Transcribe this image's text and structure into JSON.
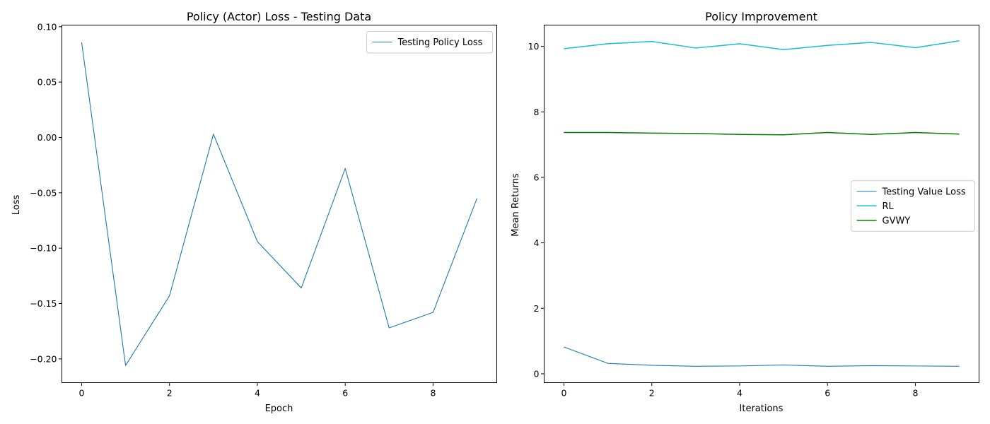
{
  "chart_data": [
    {
      "type": "line",
      "title": "Policy (Actor) Loss - Testing Data",
      "xlabel": "Epoch",
      "ylabel": "Loss",
      "x": [
        0,
        1,
        2,
        3,
        4,
        5,
        6,
        7,
        8,
        9
      ],
      "xlim": [
        -0.45,
        9.45
      ],
      "ylim": [
        -0.2215,
        0.1015
      ],
      "xticks": [
        0,
        2,
        4,
        6,
        8
      ],
      "xtick_labels": [
        "0",
        "2",
        "4",
        "6",
        "8"
      ],
      "yticks": [
        0.1,
        0.05,
        0.0,
        -0.05,
        -0.1,
        -0.15,
        -0.2
      ],
      "ytick_labels": [
        "0.10",
        "0.05",
        "0.00",
        "−0.05",
        "−0.10",
        "−0.15",
        "−0.20"
      ],
      "grid": false,
      "legend_position": "top-right",
      "series": [
        {
          "name": "Testing Policy Loss",
          "color": "#1f77b4",
          "values": [
            0.086,
            -0.206,
            -0.143,
            0.003,
            -0.094,
            -0.136,
            -0.028,
            -0.172,
            -0.158,
            -0.055
          ]
        }
      ]
    },
    {
      "type": "line",
      "title": "Policy Improvement",
      "xlabel": "Iterations",
      "ylabel": "Mean Returns",
      "x": [
        0,
        1,
        2,
        3,
        4,
        5,
        6,
        7,
        8,
        9
      ],
      "xlim": [
        -0.45,
        9.45
      ],
      "ylim": [
        -0.27,
        10.65
      ],
      "xticks": [
        0,
        2,
        4,
        6,
        8
      ],
      "xtick_labels": [
        "0",
        "2",
        "4",
        "6",
        "8"
      ],
      "yticks": [
        0,
        2,
        4,
        6,
        8,
        10
      ],
      "ytick_labels": [
        "0",
        "2",
        "4",
        "6",
        "8",
        "10"
      ],
      "grid": false,
      "legend_position": "center-right",
      "series": [
        {
          "name": "Testing Value Loss",
          "color": "#1f77b4",
          "values": [
            0.82,
            0.32,
            0.26,
            0.23,
            0.24,
            0.27,
            0.23,
            0.25,
            0.24,
            0.23
          ]
        },
        {
          "name": "RL",
          "color": "#17becf",
          "values": [
            9.93,
            10.08,
            10.15,
            9.95,
            10.08,
            9.9,
            10.03,
            10.12,
            9.96,
            10.17
          ]
        },
        {
          "name": "GVWY",
          "color": "#008000",
          "values": [
            7.37,
            7.37,
            7.35,
            7.34,
            7.31,
            7.3,
            7.37,
            7.31,
            7.37,
            7.32
          ]
        }
      ]
    }
  ]
}
